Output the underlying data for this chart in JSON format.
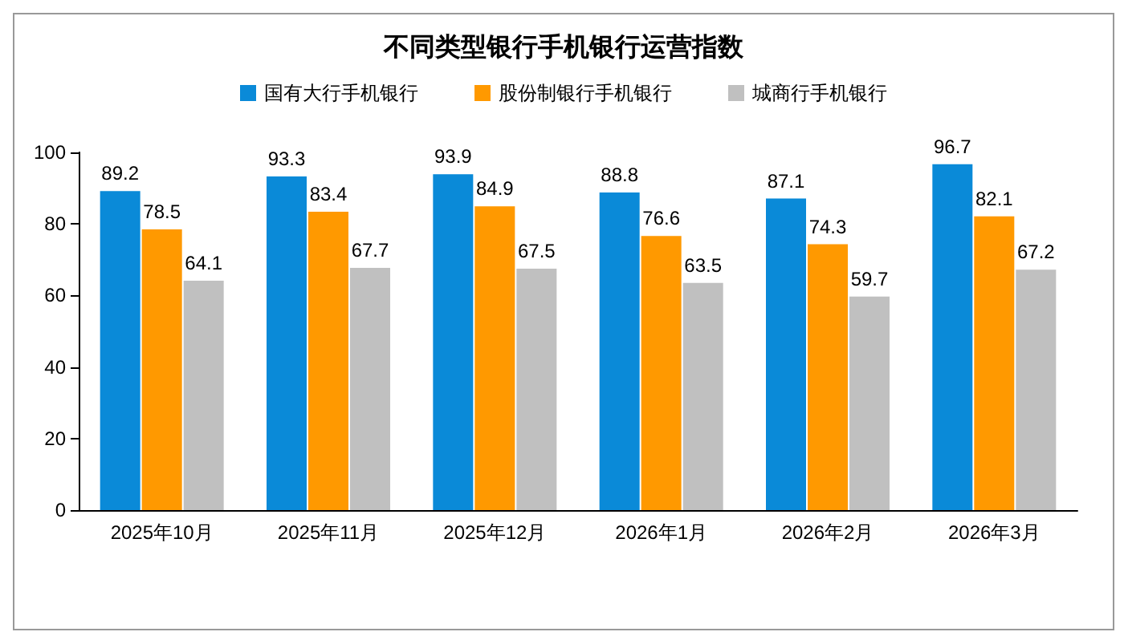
{
  "chart_data": {
    "type": "bar",
    "title": "不同类型银行手机银行运营指数",
    "categories": [
      "2025年10月",
      "2025年11月",
      "2025年12月",
      "2026年1月",
      "2026年2月",
      "2026年3月"
    ],
    "series": [
      {
        "name": "国有大行手机银行",
        "color": "#0a8ad8",
        "values": [
          89.2,
          93.3,
          93.9,
          88.8,
          87.1,
          96.7
        ]
      },
      {
        "name": "股份制银行手机银行",
        "color": "#ff9900",
        "values": [
          78.5,
          83.4,
          84.9,
          76.6,
          74.3,
          82.1
        ]
      },
      {
        "name": "城商行手机银行",
        "color": "#c0c0c0",
        "values": [
          64.1,
          67.7,
          67.5,
          63.5,
          59.7,
          67.2
        ]
      }
    ],
    "ylim": [
      0,
      100
    ],
    "yticks": [
      0,
      20,
      40,
      60,
      80,
      100
    ],
    "grid": false,
    "legend": "top",
    "data_labels": true
  }
}
